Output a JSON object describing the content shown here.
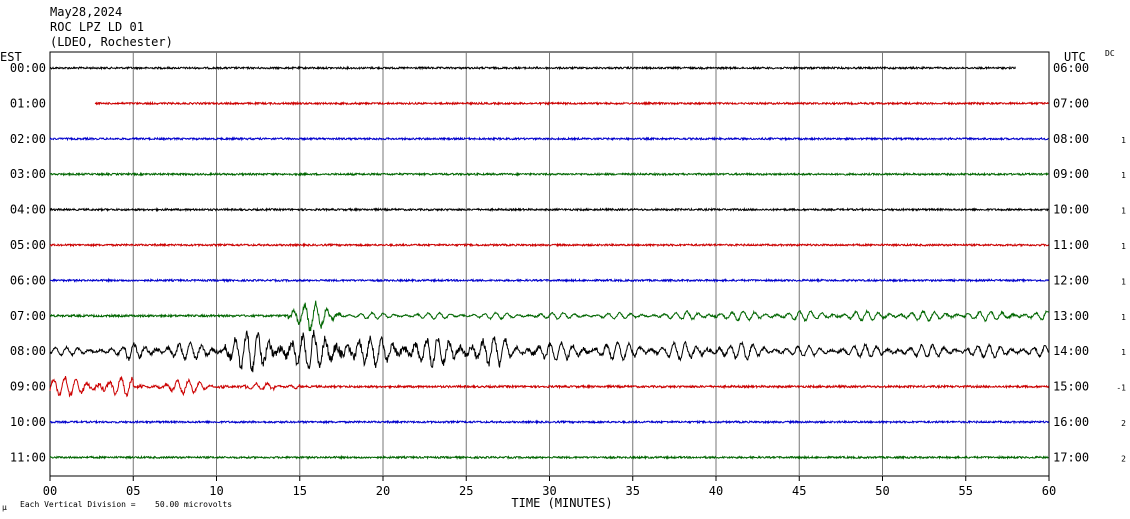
{
  "header": {
    "date": "May28,2024",
    "station": "ROC LPZ LD 01",
    "network": "(LDEO, Rochester)"
  },
  "chart_data": {
    "type": "line",
    "title": "",
    "xlabel": "TIME (MINUTES)",
    "left_axis_label": "EST",
    "right_axis_label": "UTC",
    "dc_label": "DC",
    "xlim": [
      0,
      60
    ],
    "x_ticks": [
      "00",
      "05",
      "10",
      "15",
      "20",
      "25",
      "30",
      "35",
      "40",
      "45",
      "50",
      "55",
      "60"
    ],
    "x_tick_values": [
      0,
      5,
      10,
      15,
      20,
      25,
      30,
      35,
      40,
      45,
      50,
      55,
      60
    ],
    "grid": true,
    "footer_note": "Each Vertical Division =",
    "division_value": "50.00 microvolts",
    "rows": [
      {
        "est": "00:00",
        "utc": "06:00",
        "dc": "",
        "color": "#000000",
        "start_min": 0.0,
        "end_min": 58.0,
        "amplitude": "quiet"
      },
      {
        "est": "01:00",
        "utc": "07:00",
        "dc": "",
        "color": "#cc0000",
        "start_min": 2.7,
        "end_min": 60.0,
        "amplitude": "quiet"
      },
      {
        "est": "02:00",
        "utc": "08:00",
        "dc": "1",
        "color": "#0000cc",
        "start_min": 0.0,
        "end_min": 60.0,
        "amplitude": "quiet"
      },
      {
        "est": "03:00",
        "utc": "09:00",
        "dc": "1",
        "color": "#006600",
        "start_min": 0.0,
        "end_min": 60.0,
        "amplitude": "quiet"
      },
      {
        "est": "04:00",
        "utc": "10:00",
        "dc": "1",
        "color": "#000000",
        "start_min": 0.0,
        "end_min": 60.0,
        "amplitude": "quiet"
      },
      {
        "est": "05:00",
        "utc": "11:00",
        "dc": "1",
        "color": "#cc0000",
        "start_min": 0.0,
        "end_min": 60.0,
        "amplitude": "quiet"
      },
      {
        "est": "06:00",
        "utc": "12:00",
        "dc": "1",
        "color": "#0000cc",
        "start_min": 0.0,
        "end_min": 60.0,
        "amplitude": "quiet"
      },
      {
        "est": "07:00",
        "utc": "13:00",
        "dc": "1",
        "color": "#006600",
        "start_min": 0.0,
        "end_min": 60.0,
        "amplitude": "event-onset"
      },
      {
        "est": "08:00",
        "utc": "14:00",
        "dc": "1",
        "color": "#000000",
        "start_min": 0.0,
        "end_min": 60.0,
        "amplitude": "event-strong"
      },
      {
        "est": "09:00",
        "utc": "15:00",
        "dc": "-1",
        "color": "#cc0000",
        "start_min": 0.0,
        "end_min": 60.0,
        "amplitude": "event-tail"
      },
      {
        "est": "10:00",
        "utc": "16:00",
        "dc": "2",
        "color": "#0000cc",
        "start_min": 0.0,
        "end_min": 60.0,
        "amplitude": "quiet"
      },
      {
        "est": "11:00",
        "utc": "17:00",
        "dc": "2",
        "color": "#006600",
        "start_min": 0.0,
        "end_min": 60.0,
        "amplitude": "quiet"
      }
    ]
  }
}
